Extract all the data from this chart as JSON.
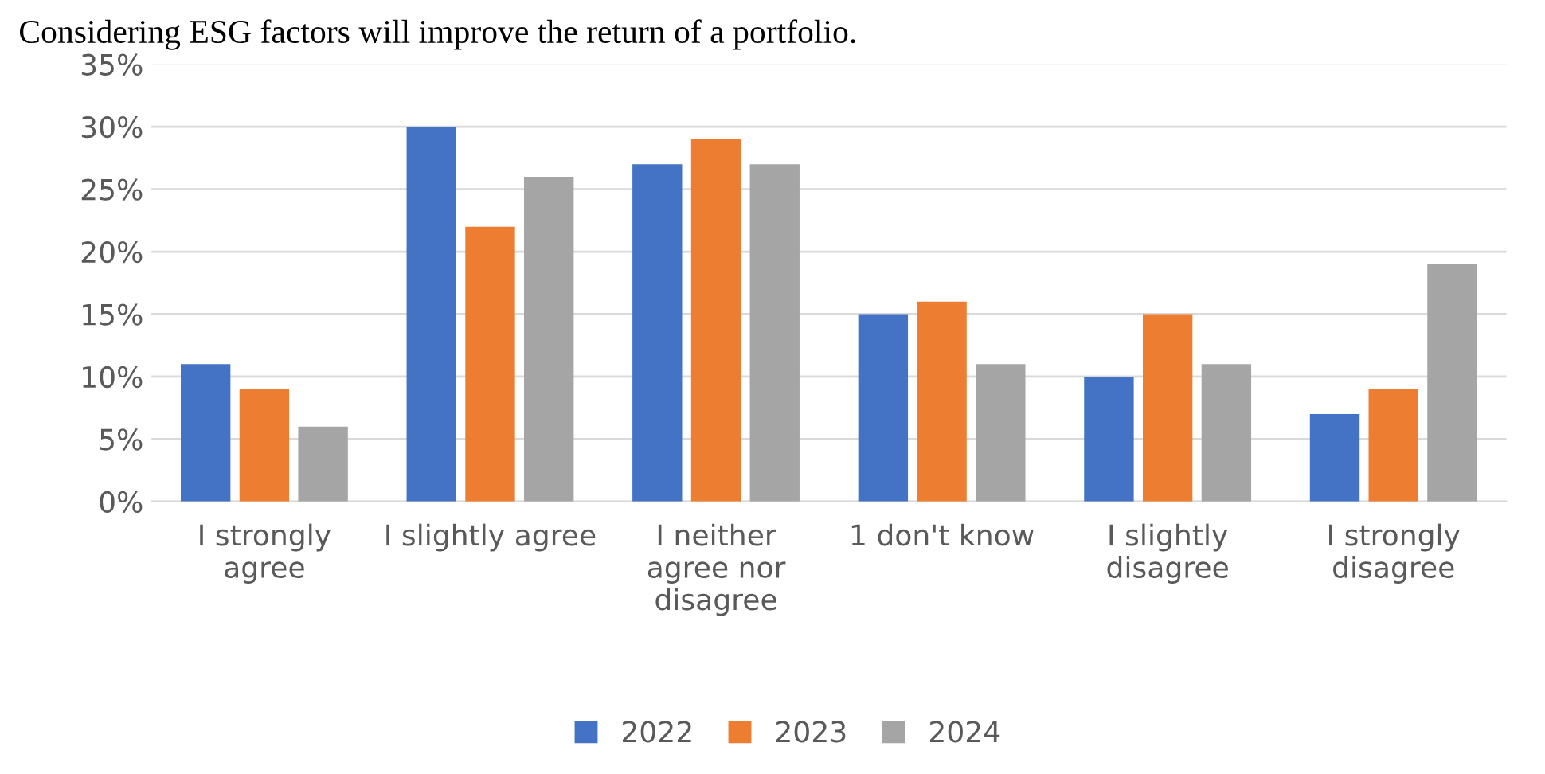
{
  "chart_data": {
    "type": "bar",
    "title": "Considering ESG factors will improve the return of a portfolio.",
    "categories": [
      "I strongly\nagree",
      "I slightly agree",
      "I neither\nagree nor\ndisagree",
      "1 don't know",
      "I slightly\ndisagree",
      "I strongly\ndisagree"
    ],
    "series": [
      {
        "name": "2022",
        "color": "#4472c4",
        "values": [
          11,
          30,
          27,
          15,
          10,
          7
        ]
      },
      {
        "name": "2023",
        "color": "#ed7d31",
        "values": [
          9,
          22,
          29,
          16,
          15,
          9
        ]
      },
      {
        "name": "2024",
        "color": "#a5a5a5",
        "values": [
          6,
          26,
          27,
          11,
          11,
          19
        ]
      }
    ],
    "ylim": [
      0,
      35
    ],
    "yticks": [
      {
        "value": 0,
        "label": "0%"
      },
      {
        "value": 5,
        "label": "5%"
      },
      {
        "value": 10,
        "label": "10%"
      },
      {
        "value": 15,
        "label": "15%"
      },
      {
        "value": 20,
        "label": "20%"
      },
      {
        "value": 25,
        "label": "25%"
      },
      {
        "value": 30,
        "label": "30%"
      },
      {
        "value": 35,
        "label": "35%"
      }
    ],
    "grid": "y",
    "legend": "bottom"
  }
}
